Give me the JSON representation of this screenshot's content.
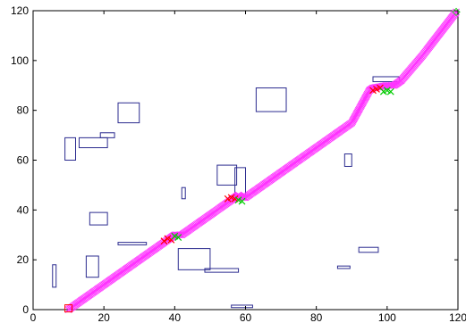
{
  "chart_data": {
    "type": "scatter",
    "title": "",
    "xlabel": "",
    "ylabel": "",
    "xlim": [
      0,
      120
    ],
    "ylim": [
      0,
      120
    ],
    "xticks": [
      0,
      20,
      40,
      60,
      80,
      100,
      120
    ],
    "yticks": [
      0,
      20,
      40,
      60,
      80,
      100,
      120
    ],
    "xtick_labels": [
      "0",
      "20",
      "40",
      "60",
      "80",
      "100",
      "120"
    ],
    "ytick_labels": [
      "0",
      "20",
      "40",
      "60",
      "80",
      "100",
      "120"
    ],
    "grid": false,
    "legend": "none",
    "obstacle_color": "#2b2b8f",
    "obstacles": [
      {
        "x0": 5.5,
        "y0": 9,
        "x1": 6.5,
        "y1": 18
      },
      {
        "x0": 9,
        "y0": 60,
        "x1": 12,
        "y1": 69
      },
      {
        "x0": 13,
        "y0": 65,
        "x1": 21,
        "y1": 69
      },
      {
        "x0": 19,
        "y0": 69,
        "x1": 23,
        "y1": 71
      },
      {
        "x0": 24,
        "y0": 75,
        "x1": 30,
        "y1": 83
      },
      {
        "x0": 15,
        "y0": 13,
        "x1": 18.5,
        "y1": 21.5
      },
      {
        "x0": 16,
        "y0": 34,
        "x1": 21,
        "y1": 39
      },
      {
        "x0": 24,
        "y0": 26,
        "x1": 32,
        "y1": 27
      },
      {
        "x0": 41,
        "y0": 16,
        "x1": 50,
        "y1": 24.5
      },
      {
        "x0": 48.5,
        "y0": 15,
        "x1": 58,
        "y1": 16.5
      },
      {
        "x0": 42,
        "y0": 44.5,
        "x1": 43,
        "y1": 49
      },
      {
        "x0": 52,
        "y0": 50,
        "x1": 57.5,
        "y1": 58
      },
      {
        "x0": 57,
        "y0": 46,
        "x1": 60,
        "y1": 57
      },
      {
        "x0": 63,
        "y0": 79.5,
        "x1": 71.5,
        "y1": 89
      },
      {
        "x0": 88,
        "y0": 57.5,
        "x1": 90,
        "y1": 62.5
      },
      {
        "x0": 86,
        "y0": 16.5,
        "x1": 89.5,
        "y1": 17.5
      },
      {
        "x0": 92,
        "y0": 23,
        "x1": 97.5,
        "y1": 25
      },
      {
        "x0": 96,
        "y0": 91.5,
        "x1": 103.5,
        "y1": 93.5
      },
      {
        "x0": 56,
        "y0": 0.8,
        "x1": 62,
        "y1": 1.8
      }
    ],
    "series": [
      {
        "color": "#ff33ff",
        "marker": "x",
        "x": [
          10,
          20,
          30,
          38,
          39,
          40,
          41,
          42,
          50,
          56,
          57,
          58,
          59,
          60,
          70,
          80,
          90,
          95,
          96,
          98,
          100,
          102,
          104,
          110,
          119.5
        ],
        "y": [
          0,
          10,
          20,
          28,
          29,
          30,
          30,
          30,
          38,
          44,
          45,
          46,
          45,
          45,
          55,
          65,
          75,
          88,
          89,
          89.5,
          90,
          90,
          92,
          102,
          119.5
        ]
      },
      {
        "color": "#ff0000",
        "marker": "x",
        "x": [
          37,
          38,
          39,
          55,
          56,
          57,
          96,
          97,
          98
        ],
        "y": [
          27.5,
          28.5,
          28,
          44.5,
          45,
          44.5,
          88,
          88.5,
          89
        ]
      },
      {
        "color": "#00cc00",
        "marker": "x",
        "x": [
          40,
          41,
          58,
          59,
          99,
          100,
          101
        ],
        "y": [
          29.5,
          29,
          44,
          43.5,
          87.5,
          88,
          87.5
        ]
      }
    ],
    "start_point": {
      "x": 10,
      "y": 0.5,
      "color": "#ff0000"
    },
    "goal_point": {
      "x": 119.5,
      "y": 119.5,
      "color": "#33cc33"
    }
  }
}
